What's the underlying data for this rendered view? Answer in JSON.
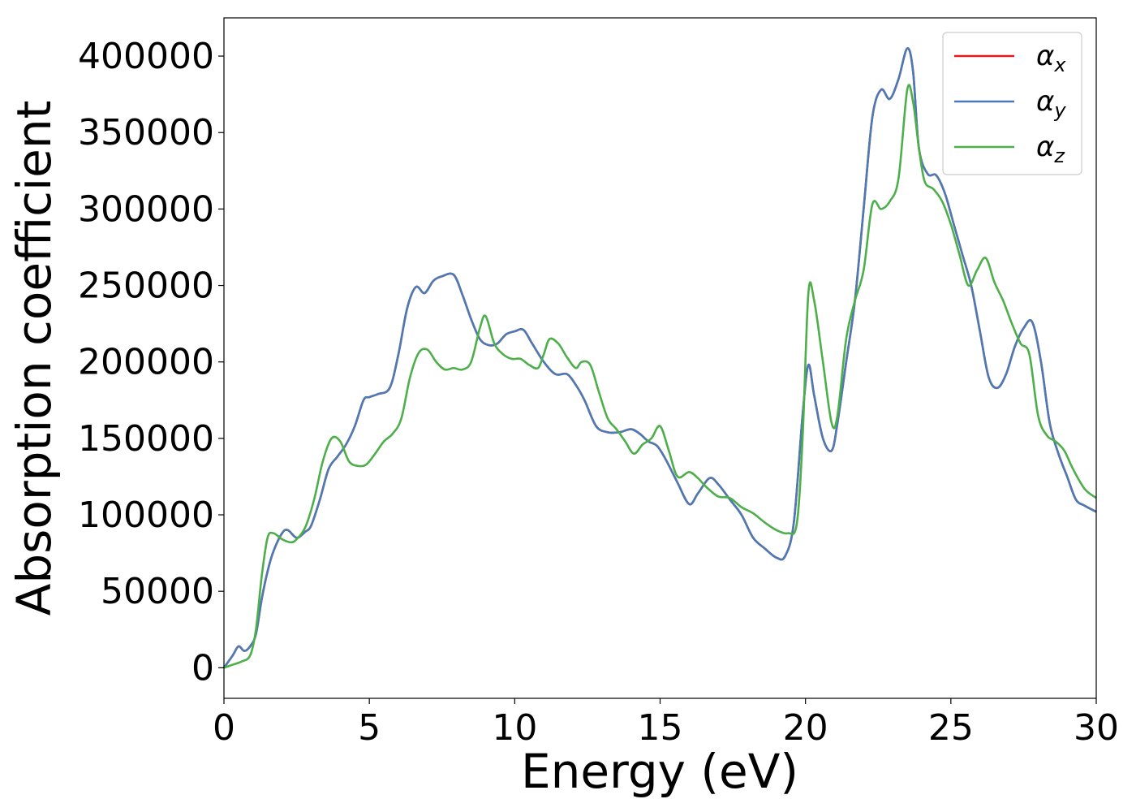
{
  "chart_data": {
    "type": "line",
    "xlabel": "Energy (eV)",
    "ylabel": "Absorption coefficient",
    "xlim": [
      0,
      30
    ],
    "ylim": [
      -20000,
      425000
    ],
    "xticks": [
      0,
      5,
      10,
      15,
      20,
      25,
      30
    ],
    "yticks": [
      0,
      50000,
      100000,
      150000,
      200000,
      250000,
      300000,
      350000,
      400000
    ],
    "grid": false,
    "legend_position": "top-right",
    "series": [
      {
        "name": "α_x",
        "symbol": "α",
        "subscript": "x",
        "color": "#e41a1c",
        "x": [
          0,
          0.3,
          0.5,
          0.7,
          0.9,
          1.1,
          1.3,
          1.5,
          1.7,
          2.0,
          2.2,
          2.5,
          2.8,
          3.0,
          3.3,
          3.6,
          3.9,
          4.2,
          4.5,
          4.8,
          5.0,
          5.3,
          5.7,
          6.0,
          6.3,
          6.6,
          6.9,
          7.2,
          7.5,
          7.9,
          8.2,
          8.5,
          8.8,
          9.1,
          9.4,
          9.7,
          10.0,
          10.3,
          10.6,
          11.0,
          11.4,
          11.8,
          12.1,
          12.4,
          12.8,
          13.2,
          13.6,
          14.0,
          14.3,
          14.6,
          14.9,
          15.2,
          15.6,
          16.0,
          16.3,
          16.7,
          17.0,
          17.4,
          17.8,
          18.2,
          18.6,
          19.0,
          19.3,
          19.6,
          19.9,
          20.1,
          20.3,
          20.6,
          20.9,
          21.1,
          21.4,
          21.7,
          22.0,
          22.3,
          22.6,
          22.9,
          23.2,
          23.5,
          23.7,
          23.9,
          24.2,
          24.5,
          24.8,
          25.1,
          25.4,
          25.7,
          26.0,
          26.3,
          26.6,
          26.9,
          27.2,
          27.5,
          27.8,
          28.1,
          28.4,
          28.7,
          29.0,
          29.3,
          29.6,
          30.0
        ],
        "y": [
          0,
          8000,
          14000,
          11000,
          14000,
          22000,
          45000,
          63000,
          76000,
          88000,
          90000,
          85000,
          89000,
          93000,
          110000,
          130000,
          138000,
          146000,
          158000,
          175000,
          177000,
          179000,
          183000,
          205000,
          235000,
          249000,
          245000,
          253000,
          256000,
          257000,
          244000,
          228000,
          215000,
          211000,
          212000,
          218000,
          220000,
          221000,
          212000,
          200000,
          192000,
          192000,
          185000,
          175000,
          158000,
          154000,
          154000,
          156000,
          153000,
          148000,
          145000,
          136000,
          121000,
          107000,
          114000,
          124000,
          120000,
          110000,
          100000,
          85000,
          78000,
          72000,
          73000,
          95000,
          165000,
          198000,
          178000,
          150000,
          142000,
          160000,
          200000,
          240000,
          300000,
          360000,
          378000,
          372000,
          385000,
          405000,
          390000,
          340000,
          323000,
          322000,
          310000,
          290000,
          270000,
          250000,
          220000,
          190000,
          183000,
          192000,
          210000,
          222000,
          226000,
          200000,
          160000,
          140000,
          125000,
          110000,
          106000,
          102000
        ]
      },
      {
        "name": "α_y",
        "symbol": "α",
        "subscript": "y",
        "color": "#4a7bb5",
        "x": [
          0,
          0.3,
          0.5,
          0.7,
          0.9,
          1.1,
          1.3,
          1.5,
          1.7,
          2.0,
          2.2,
          2.5,
          2.8,
          3.0,
          3.3,
          3.6,
          3.9,
          4.2,
          4.5,
          4.8,
          5.0,
          5.3,
          5.7,
          6.0,
          6.3,
          6.6,
          6.9,
          7.2,
          7.5,
          7.9,
          8.2,
          8.5,
          8.8,
          9.1,
          9.4,
          9.7,
          10.0,
          10.3,
          10.6,
          11.0,
          11.4,
          11.8,
          12.1,
          12.4,
          12.8,
          13.2,
          13.6,
          14.0,
          14.3,
          14.6,
          14.9,
          15.2,
          15.6,
          16.0,
          16.3,
          16.7,
          17.0,
          17.4,
          17.8,
          18.2,
          18.6,
          19.0,
          19.3,
          19.6,
          19.9,
          20.1,
          20.3,
          20.6,
          20.9,
          21.1,
          21.4,
          21.7,
          22.0,
          22.3,
          22.6,
          22.9,
          23.2,
          23.5,
          23.7,
          23.9,
          24.2,
          24.5,
          24.8,
          25.1,
          25.4,
          25.7,
          26.0,
          26.3,
          26.6,
          26.9,
          27.2,
          27.5,
          27.8,
          28.1,
          28.4,
          28.7,
          29.0,
          29.3,
          29.6,
          30.0
        ],
        "y": [
          0,
          8000,
          14000,
          11000,
          14000,
          22000,
          45000,
          63000,
          76000,
          88000,
          90000,
          85000,
          89000,
          93000,
          110000,
          130000,
          138000,
          146000,
          158000,
          175000,
          177000,
          179000,
          183000,
          205000,
          235000,
          249000,
          245000,
          253000,
          256000,
          257000,
          244000,
          228000,
          215000,
          211000,
          212000,
          218000,
          220000,
          221000,
          212000,
          200000,
          192000,
          192000,
          185000,
          175000,
          158000,
          154000,
          154000,
          156000,
          153000,
          148000,
          145000,
          136000,
          121000,
          107000,
          114000,
          124000,
          120000,
          110000,
          100000,
          85000,
          78000,
          72000,
          73000,
          95000,
          165000,
          198000,
          178000,
          150000,
          142000,
          160000,
          200000,
          240000,
          300000,
          360000,
          378000,
          372000,
          385000,
          405000,
          390000,
          340000,
          323000,
          322000,
          310000,
          290000,
          270000,
          250000,
          220000,
          190000,
          183000,
          192000,
          210000,
          222000,
          226000,
          200000,
          160000,
          140000,
          125000,
          110000,
          106000,
          102000
        ]
      },
      {
        "name": "α_z",
        "symbol": "α",
        "subscript": "z",
        "color": "#4daf4a",
        "x": [
          0,
          0.3,
          0.6,
          0.9,
          1.1,
          1.3,
          1.5,
          1.7,
          2.0,
          2.3,
          2.5,
          2.8,
          3.1,
          3.4,
          3.7,
          4.0,
          4.3,
          4.6,
          4.9,
          5.2,
          5.5,
          5.8,
          6.1,
          6.4,
          6.7,
          7.0,
          7.3,
          7.6,
          7.9,
          8.2,
          8.5,
          8.8,
          9.0,
          9.3,
          9.6,
          9.9,
          10.2,
          10.5,
          10.8,
          11.0,
          11.2,
          11.5,
          11.8,
          12.1,
          12.3,
          12.6,
          12.9,
          13.2,
          13.5,
          13.8,
          14.1,
          14.4,
          14.7,
          15.0,
          15.3,
          15.6,
          16.0,
          16.3,
          16.6,
          17.0,
          17.4,
          17.8,
          18.2,
          18.6,
          19.0,
          19.4,
          19.7,
          19.9,
          20.1,
          20.3,
          20.6,
          20.9,
          21.1,
          21.4,
          21.7,
          22.0,
          22.3,
          22.6,
          22.9,
          23.2,
          23.5,
          23.7,
          23.9,
          24.1,
          24.4,
          24.7,
          25.0,
          25.3,
          25.6,
          25.9,
          26.2,
          26.5,
          26.8,
          27.1,
          27.4,
          27.7,
          28.0,
          28.3,
          28.6,
          28.9,
          29.2,
          29.6,
          30.0
        ],
        "y": [
          0,
          2000,
          4000,
          8000,
          25000,
          60000,
          85000,
          88000,
          84000,
          82000,
          84000,
          92000,
          110000,
          135000,
          150000,
          148000,
          135000,
          132000,
          133000,
          140000,
          148000,
          153000,
          163000,
          190000,
          206000,
          208000,
          200000,
          195000,
          196000,
          195000,
          200000,
          222000,
          230000,
          212000,
          205000,
          202000,
          202000,
          198000,
          196000,
          205000,
          215000,
          212000,
          203000,
          196000,
          200000,
          198000,
          180000,
          163000,
          156000,
          148000,
          140000,
          146000,
          150000,
          158000,
          142000,
          125000,
          128000,
          124000,
          118000,
          112000,
          111000,
          105000,
          101000,
          95000,
          90000,
          88000,
          94000,
          150000,
          245000,
          240000,
          200000,
          160000,
          165000,
          215000,
          240000,
          260000,
          303000,
          300000,
          305000,
          320000,
          378000,
          370000,
          340000,
          318000,
          313000,
          305000,
          290000,
          270000,
          250000,
          260000,
          268000,
          252000,
          240000,
          225000,
          212000,
          205000,
          165000,
          152000,
          148000,
          142000,
          130000,
          117000,
          111000
        ]
      }
    ]
  }
}
